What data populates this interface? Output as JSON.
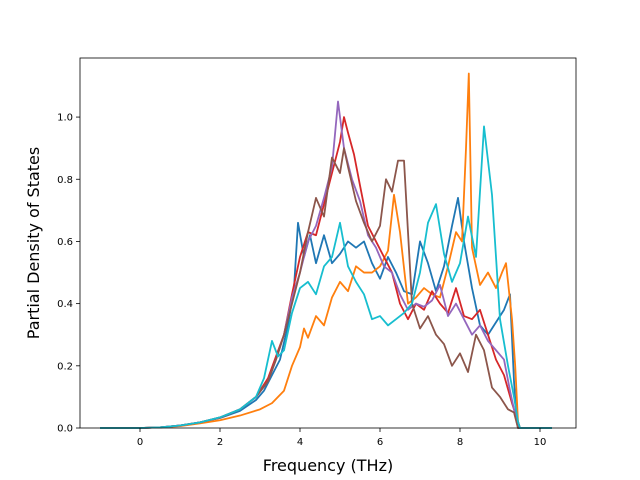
{
  "chart_data": {
    "type": "line",
    "title": "",
    "xlabel": "Frequency (THz)",
    "ylabel": "Partial Density of States",
    "xlim": [
      -1.5,
      10.9
    ],
    "ylim": [
      0.0,
      1.19
    ],
    "xticks": [
      0,
      2,
      4,
      6,
      8,
      10
    ],
    "yticks": [
      0.0,
      0.2,
      0.4,
      0.6,
      0.8,
      1.0
    ],
    "xtick_labels": [
      "0",
      "2",
      "4",
      "6",
      "8",
      "10"
    ],
    "ytick_labels": [
      "0.0",
      "0.2",
      "0.4",
      "0.6",
      "0.8",
      "1.0"
    ],
    "grid": false,
    "legend": "none",
    "series": [
      {
        "color": "#1f77b4",
        "points": [
          [
            -1.0,
            0.0
          ],
          [
            0.0,
            0.0
          ],
          [
            0.5,
            0.002
          ],
          [
            1.0,
            0.008
          ],
          [
            1.5,
            0.018
          ],
          [
            2.0,
            0.032
          ],
          [
            2.5,
            0.055
          ],
          [
            2.9,
            0.09
          ],
          [
            3.1,
            0.12
          ],
          [
            3.3,
            0.17
          ],
          [
            3.5,
            0.22
          ],
          [
            3.7,
            0.33
          ],
          [
            3.85,
            0.45
          ],
          [
            3.95,
            0.66
          ],
          [
            4.1,
            0.55
          ],
          [
            4.25,
            0.62
          ],
          [
            4.4,
            0.53
          ],
          [
            4.6,
            0.62
          ],
          [
            4.8,
            0.53
          ],
          [
            5.0,
            0.56
          ],
          [
            5.2,
            0.6
          ],
          [
            5.4,
            0.58
          ],
          [
            5.6,
            0.6
          ],
          [
            5.8,
            0.53
          ],
          [
            6.0,
            0.48
          ],
          [
            6.2,
            0.55
          ],
          [
            6.4,
            0.5
          ],
          [
            6.6,
            0.44
          ],
          [
            6.8,
            0.43
          ],
          [
            7.0,
            0.6
          ],
          [
            7.2,
            0.53
          ],
          [
            7.4,
            0.44
          ],
          [
            7.6,
            0.52
          ],
          [
            7.8,
            0.65
          ],
          [
            7.95,
            0.74
          ],
          [
            8.1,
            0.6
          ],
          [
            8.3,
            0.45
          ],
          [
            8.5,
            0.33
          ],
          [
            8.7,
            0.3
          ],
          [
            8.9,
            0.34
          ],
          [
            9.1,
            0.38
          ],
          [
            9.25,
            0.43
          ],
          [
            9.35,
            0.15
          ],
          [
            9.42,
            0.02
          ],
          [
            9.5,
            0.0
          ],
          [
            10.3,
            0.0
          ]
        ]
      },
      {
        "color": "#ff7f0e",
        "points": [
          [
            -1.0,
            0.0
          ],
          [
            0.0,
            0.0
          ],
          [
            0.5,
            0.002
          ],
          [
            1.0,
            0.006
          ],
          [
            1.5,
            0.015
          ],
          [
            2.0,
            0.025
          ],
          [
            2.5,
            0.04
          ],
          [
            3.0,
            0.06
          ],
          [
            3.3,
            0.08
          ],
          [
            3.6,
            0.12
          ],
          [
            3.8,
            0.2
          ],
          [
            4.0,
            0.26
          ],
          [
            4.1,
            0.32
          ],
          [
            4.2,
            0.29
          ],
          [
            4.4,
            0.36
          ],
          [
            4.6,
            0.33
          ],
          [
            4.8,
            0.42
          ],
          [
            5.0,
            0.47
          ],
          [
            5.2,
            0.44
          ],
          [
            5.4,
            0.52
          ],
          [
            5.6,
            0.5
          ],
          [
            5.8,
            0.5
          ],
          [
            6.0,
            0.52
          ],
          [
            6.2,
            0.57
          ],
          [
            6.35,
            0.75
          ],
          [
            6.5,
            0.63
          ],
          [
            6.7,
            0.4
          ],
          [
            6.9,
            0.42
          ],
          [
            7.1,
            0.45
          ],
          [
            7.3,
            0.43
          ],
          [
            7.5,
            0.42
          ],
          [
            7.7,
            0.52
          ],
          [
            7.9,
            0.63
          ],
          [
            8.05,
            0.6
          ],
          [
            8.15,
            0.9
          ],
          [
            8.22,
            1.14
          ],
          [
            8.3,
            0.58
          ],
          [
            8.5,
            0.46
          ],
          [
            8.7,
            0.5
          ],
          [
            8.9,
            0.45
          ],
          [
            9.05,
            0.5
          ],
          [
            9.15,
            0.53
          ],
          [
            9.3,
            0.35
          ],
          [
            9.38,
            0.2
          ],
          [
            9.45,
            0.02
          ],
          [
            9.5,
            0.0
          ],
          [
            10.3,
            0.0
          ]
        ]
      },
      {
        "color": "#d62728",
        "points": [
          [
            -1.0,
            0.0
          ],
          [
            0.0,
            0.0
          ],
          [
            0.5,
            0.002
          ],
          [
            1.0,
            0.008
          ],
          [
            1.5,
            0.018
          ],
          [
            2.0,
            0.033
          ],
          [
            2.5,
            0.06
          ],
          [
            2.9,
            0.1
          ],
          [
            3.2,
            0.16
          ],
          [
            3.4,
            0.23
          ],
          [
            3.6,
            0.3
          ],
          [
            3.8,
            0.43
          ],
          [
            4.0,
            0.55
          ],
          [
            4.2,
            0.63
          ],
          [
            4.4,
            0.62
          ],
          [
            4.6,
            0.72
          ],
          [
            4.8,
            0.82
          ],
          [
            5.0,
            0.92
          ],
          [
            5.1,
            1.0
          ],
          [
            5.2,
            0.95
          ],
          [
            5.35,
            0.88
          ],
          [
            5.5,
            0.78
          ],
          [
            5.7,
            0.65
          ],
          [
            5.9,
            0.6
          ],
          [
            6.1,
            0.55
          ],
          [
            6.3,
            0.5
          ],
          [
            6.5,
            0.4
          ],
          [
            6.7,
            0.35
          ],
          [
            6.9,
            0.4
          ],
          [
            7.1,
            0.38
          ],
          [
            7.3,
            0.44
          ],
          [
            7.5,
            0.4
          ],
          [
            7.7,
            0.37
          ],
          [
            7.9,
            0.45
          ],
          [
            8.1,
            0.36
          ],
          [
            8.3,
            0.35
          ],
          [
            8.5,
            0.38
          ],
          [
            8.7,
            0.3
          ],
          [
            8.9,
            0.22
          ],
          [
            9.1,
            0.17
          ],
          [
            9.3,
            0.08
          ],
          [
            9.4,
            0.04
          ],
          [
            9.5,
            0.0
          ],
          [
            10.3,
            0.0
          ]
        ]
      },
      {
        "color": "#9467bd",
        "points": [
          [
            -1.0,
            0.0
          ],
          [
            0.0,
            0.0
          ],
          [
            0.5,
            0.002
          ],
          [
            1.0,
            0.008
          ],
          [
            1.5,
            0.018
          ],
          [
            2.0,
            0.034
          ],
          [
            2.5,
            0.06
          ],
          [
            2.9,
            0.1
          ],
          [
            3.2,
            0.15
          ],
          [
            3.4,
            0.22
          ],
          [
            3.6,
            0.3
          ],
          [
            3.8,
            0.42
          ],
          [
            4.0,
            0.5
          ],
          [
            4.2,
            0.6
          ],
          [
            4.4,
            0.65
          ],
          [
            4.6,
            0.74
          ],
          [
            4.8,
            0.84
          ],
          [
            4.95,
            1.05
          ],
          [
            5.1,
            0.9
          ],
          [
            5.3,
            0.8
          ],
          [
            5.5,
            0.73
          ],
          [
            5.7,
            0.62
          ],
          [
            5.9,
            0.58
          ],
          [
            6.1,
            0.52
          ],
          [
            6.3,
            0.5
          ],
          [
            6.5,
            0.43
          ],
          [
            6.7,
            0.38
          ],
          [
            6.9,
            0.4
          ],
          [
            7.1,
            0.39
          ],
          [
            7.3,
            0.41
          ],
          [
            7.5,
            0.46
          ],
          [
            7.7,
            0.36
          ],
          [
            7.9,
            0.4
          ],
          [
            8.1,
            0.35
          ],
          [
            8.3,
            0.3
          ],
          [
            8.5,
            0.33
          ],
          [
            8.7,
            0.28
          ],
          [
            8.9,
            0.25
          ],
          [
            9.1,
            0.22
          ],
          [
            9.25,
            0.12
          ],
          [
            9.35,
            0.06
          ],
          [
            9.45,
            0.0
          ],
          [
            10.3,
            0.0
          ]
        ]
      },
      {
        "color": "#8c564b",
        "points": [
          [
            -1.0,
            0.0
          ],
          [
            0.0,
            0.0
          ],
          [
            0.5,
            0.002
          ],
          [
            1.0,
            0.008
          ],
          [
            1.5,
            0.018
          ],
          [
            2.0,
            0.034
          ],
          [
            2.5,
            0.06
          ],
          [
            2.9,
            0.1
          ],
          [
            3.2,
            0.15
          ],
          [
            3.4,
            0.22
          ],
          [
            3.6,
            0.3
          ],
          [
            3.8,
            0.4
          ],
          [
            4.0,
            0.5
          ],
          [
            4.2,
            0.63
          ],
          [
            4.4,
            0.74
          ],
          [
            4.6,
            0.68
          ],
          [
            4.8,
            0.87
          ],
          [
            5.0,
            0.82
          ],
          [
            5.1,
            0.9
          ],
          [
            5.2,
            0.84
          ],
          [
            5.4,
            0.73
          ],
          [
            5.6,
            0.66
          ],
          [
            5.8,
            0.6
          ],
          [
            6.0,
            0.65
          ],
          [
            6.15,
            0.8
          ],
          [
            6.3,
            0.76
          ],
          [
            6.45,
            0.86
          ],
          [
            6.6,
            0.86
          ],
          [
            6.8,
            0.4
          ],
          [
            7.0,
            0.32
          ],
          [
            7.2,
            0.36
          ],
          [
            7.4,
            0.3
          ],
          [
            7.6,
            0.27
          ],
          [
            7.8,
            0.2
          ],
          [
            8.0,
            0.24
          ],
          [
            8.2,
            0.18
          ],
          [
            8.4,
            0.3
          ],
          [
            8.6,
            0.25
          ],
          [
            8.8,
            0.13
          ],
          [
            9.0,
            0.1
          ],
          [
            9.2,
            0.06
          ],
          [
            9.35,
            0.05
          ],
          [
            9.45,
            0.0
          ],
          [
            10.3,
            0.0
          ]
        ]
      },
      {
        "color": "#17becf",
        "points": [
          [
            -1.0,
            0.0
          ],
          [
            0.0,
            0.0
          ],
          [
            0.5,
            0.002
          ],
          [
            1.0,
            0.008
          ],
          [
            1.5,
            0.018
          ],
          [
            2.0,
            0.034
          ],
          [
            2.5,
            0.06
          ],
          [
            2.9,
            0.1
          ],
          [
            3.1,
            0.16
          ],
          [
            3.3,
            0.28
          ],
          [
            3.45,
            0.23
          ],
          [
            3.6,
            0.25
          ],
          [
            3.8,
            0.37
          ],
          [
            4.0,
            0.45
          ],
          [
            4.2,
            0.47
          ],
          [
            4.4,
            0.43
          ],
          [
            4.6,
            0.52
          ],
          [
            4.8,
            0.55
          ],
          [
            5.0,
            0.66
          ],
          [
            5.2,
            0.52
          ],
          [
            5.4,
            0.47
          ],
          [
            5.6,
            0.43
          ],
          [
            5.8,
            0.35
          ],
          [
            6.0,
            0.36
          ],
          [
            6.2,
            0.33
          ],
          [
            6.4,
            0.35
          ],
          [
            6.6,
            0.37
          ],
          [
            6.8,
            0.4
          ],
          [
            7.0,
            0.5
          ],
          [
            7.2,
            0.66
          ],
          [
            7.4,
            0.72
          ],
          [
            7.6,
            0.56
          ],
          [
            7.8,
            0.47
          ],
          [
            8.0,
            0.53
          ],
          [
            8.2,
            0.68
          ],
          [
            8.4,
            0.55
          ],
          [
            8.6,
            0.97
          ],
          [
            8.8,
            0.75
          ],
          [
            9.0,
            0.35
          ],
          [
            9.2,
            0.2
          ],
          [
            9.35,
            0.1
          ],
          [
            9.45,
            0.02
          ],
          [
            9.5,
            0.0
          ],
          [
            10.3,
            0.0
          ]
        ]
      }
    ]
  }
}
